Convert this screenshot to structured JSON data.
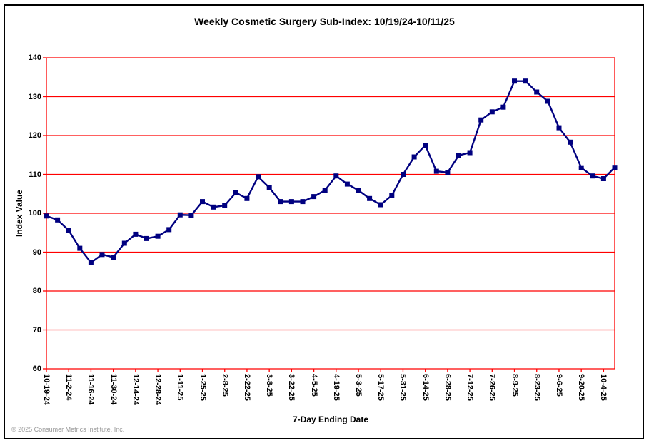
{
  "window": {
    "title": "Weekly Cosmetic Surgery Sub-Index: 10/19/24-10/11/25",
    "copyright": "© 2025 Consumer Metrics Institute, Inc."
  },
  "chart_data": {
    "type": "line",
    "title": "Weekly Cosmetic Surgery Sub-Index: 10/19/24-10/11/25",
    "xlabel": "7-Day Ending Date",
    "ylabel": "Index Value",
    "ylim": [
      60,
      140
    ],
    "ytick_step": 10,
    "yticks": [
      60,
      70,
      80,
      90,
      100,
      110,
      120,
      130,
      140
    ],
    "grid": "horizontal red gridlines, red plot border",
    "legend": "none",
    "x": [
      "10-19-24",
      "10-26-24",
      "11-2-24",
      "11-9-24",
      "11-16-24",
      "11-23-24",
      "11-30-24",
      "12-7-24",
      "12-14-24",
      "12-21-24",
      "12-28-24",
      "1-4-25",
      "1-11-25",
      "1-18-25",
      "1-25-25",
      "2-1-25",
      "2-8-25",
      "2-15-25",
      "2-22-25",
      "3-1-25",
      "3-8-25",
      "3-15-25",
      "3-22-25",
      "3-29-25",
      "4-5-25",
      "4-12-25",
      "4-19-25",
      "4-26-25",
      "5-3-25",
      "5-10-25",
      "5-17-25",
      "5-24-25",
      "5-31-25",
      "6-7-25",
      "6-14-25",
      "6-21-25",
      "6-28-25",
      "7-5-25",
      "7-12-25",
      "7-19-25",
      "7-26-25",
      "8-2-25",
      "8-9-25",
      "8-16-25",
      "8-23-25",
      "8-30-25",
      "9-6-25",
      "9-13-25",
      "9-20-25",
      "9-27-25",
      "10-4-25",
      "10-11-25"
    ],
    "series": [
      {
        "name": "Weekly Cosmetic Surgery Sub-Index",
        "marker": "square",
        "values": [
          99.3,
          98.3,
          95.6,
          91.0,
          87.3,
          89.4,
          88.7,
          92.3,
          94.6,
          93.5,
          94.1,
          95.8,
          99.6,
          99.5,
          103.0,
          101.6,
          102.0,
          105.3,
          103.8,
          109.4,
          106.6,
          103.0,
          103.0,
          103.0,
          104.3,
          105.9,
          109.6,
          107.5,
          105.9,
          103.8,
          102.2,
          104.6,
          110.0,
          114.5,
          117.5,
          110.8,
          110.5,
          114.9,
          115.6,
          124.0,
          126.1,
          127.3,
          134.0,
          134.0,
          131.2,
          128.8,
          122.0,
          118.3,
          111.7,
          109.6,
          108.9,
          111.8
        ]
      }
    ],
    "xtick_every": 2,
    "xtick_labels": [
      "10-19-24",
      "11-2-24",
      "11-16-24",
      "11-30-24",
      "12-14-24",
      "12-28-24",
      "1-11-25",
      "1-25-25",
      "2-8-25",
      "2-22-25",
      "3-8-25",
      "3-22-25",
      "4-5-25",
      "4-19-25",
      "5-3-25",
      "5-17-25",
      "5-31-25",
      "6-14-25",
      "6-28-25",
      "7-12-25",
      "7-26-25",
      "8-9-25",
      "8-23-25",
      "9-6-25",
      "9-20-25",
      "10-4-25"
    ]
  },
  "colors": {
    "line": "#000080",
    "grid": "#ff0000",
    "text": "#000000",
    "copyright_text": "#9a9a9a",
    "background": "#ffffff",
    "frame_border": "#000000"
  }
}
